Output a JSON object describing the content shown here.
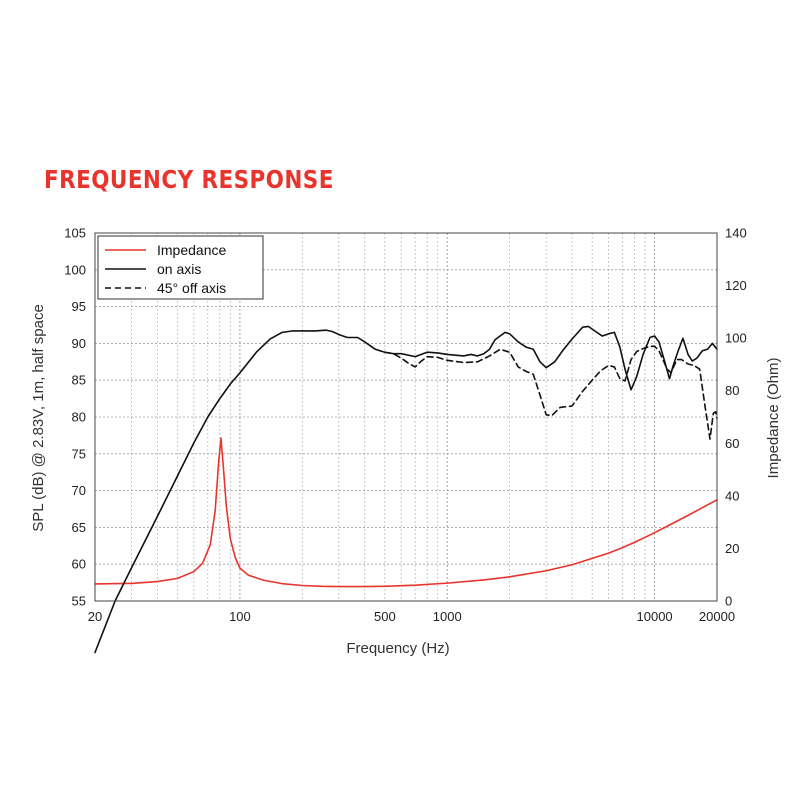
{
  "page_title": "FREQUENCY RESPONSE",
  "colors": {
    "title": "#e8342c",
    "impedance": "#e8342c",
    "on_axis": "#111111",
    "off_axis": "#111111",
    "grid": "#9a9a9a"
  },
  "chart_data": {
    "type": "line",
    "xlabel": "Frequency (Hz)",
    "ylabel": "SPL (dB) @ 2.83V, 1m, half space",
    "y2label": "Impedance (Ohm)",
    "x_scale": "log",
    "xlim": [
      20,
      20000
    ],
    "ylim": [
      55,
      105
    ],
    "y2lim": [
      0,
      140
    ],
    "grid": true,
    "legend_position": "top-left",
    "x_ticks": [
      20,
      100,
      500,
      1000,
      10000,
      20000
    ],
    "x_tick_labels": [
      "20",
      "100",
      "500",
      "1000",
      "10000",
      "20000"
    ],
    "y_ticks": [
      55,
      60,
      65,
      70,
      75,
      80,
      85,
      90,
      95,
      100,
      105
    ],
    "y_tick_labels": [
      "55",
      "60",
      "65",
      "70",
      "75",
      "80",
      "85",
      "90",
      "95",
      "100",
      "105"
    ],
    "y2_ticks": [
      0,
      20,
      40,
      60,
      80,
      100,
      120,
      140
    ],
    "y2_tick_labels": [
      "0",
      "20",
      "40",
      "60",
      "80",
      "100",
      "120",
      "140"
    ],
    "series": [
      {
        "name": "Impedance",
        "axis": "right",
        "style": "solid",
        "color": "#e8342c",
        "points": [
          [
            20,
            6.5
          ],
          [
            30,
            6.7
          ],
          [
            40,
            7.4
          ],
          [
            50,
            8.6
          ],
          [
            60,
            11.2
          ],
          [
            66,
            14.3
          ],
          [
            72,
            21.5
          ],
          [
            76,
            34.5
          ],
          [
            79,
            53
          ],
          [
            81,
            62
          ],
          [
            83,
            52
          ],
          [
            86,
            36
          ],
          [
            90,
            23.5
          ],
          [
            95,
            16.5
          ],
          [
            100,
            12.5
          ],
          [
            110,
            9.8
          ],
          [
            130,
            7.9
          ],
          [
            160,
            6.6
          ],
          [
            200,
            5.9
          ],
          [
            250,
            5.6
          ],
          [
            300,
            5.5
          ],
          [
            400,
            5.5
          ],
          [
            500,
            5.6
          ],
          [
            700,
            6
          ],
          [
            1000,
            6.8
          ],
          [
            1500,
            8
          ],
          [
            2000,
            9.2
          ],
          [
            3000,
            11.5
          ],
          [
            4000,
            13.8
          ],
          [
            5000,
            16.2
          ],
          [
            6000,
            18.2
          ],
          [
            7000,
            20.3
          ],
          [
            8000,
            22.3
          ],
          [
            10000,
            26
          ],
          [
            12000,
            29.2
          ],
          [
            15000,
            33.2
          ],
          [
            20000,
            38.5
          ]
        ]
      },
      {
        "name": "on axis",
        "axis": "left",
        "style": "solid",
        "color": "#111111",
        "points": [
          [
            20,
            48
          ],
          [
            25,
            55
          ],
          [
            30,
            59.5
          ],
          [
            40,
            66.5
          ],
          [
            50,
            72
          ],
          [
            60,
            76.5
          ],
          [
            70,
            80
          ],
          [
            80,
            82.5
          ],
          [
            90,
            84.5
          ],
          [
            100,
            86
          ],
          [
            120,
            88.8
          ],
          [
            140,
            90.6
          ],
          [
            160,
            91.5
          ],
          [
            180,
            91.7
          ],
          [
            200,
            91.7
          ],
          [
            230,
            91.7
          ],
          [
            260,
            91.8
          ],
          [
            280,
            91.6
          ],
          [
            300,
            91.2
          ],
          [
            330,
            90.8
          ],
          [
            370,
            90.8
          ],
          [
            400,
            90.2
          ],
          [
            450,
            89.2
          ],
          [
            500,
            88.8
          ],
          [
            550,
            88.6
          ],
          [
            600,
            88.6
          ],
          [
            700,
            88.2
          ],
          [
            800,
            88.8
          ],
          [
            900,
            88.7
          ],
          [
            1000,
            88.5
          ],
          [
            1200,
            88.3
          ],
          [
            1300,
            88.5
          ],
          [
            1400,
            88.3
          ],
          [
            1500,
            88.6
          ],
          [
            1600,
            89.2
          ],
          [
            1700,
            90.5
          ],
          [
            1900,
            91.5
          ],
          [
            2000,
            91.3
          ],
          [
            2200,
            90.2
          ],
          [
            2400,
            89.5
          ],
          [
            2600,
            89.2
          ],
          [
            2800,
            87.5
          ],
          [
            3000,
            86.7
          ],
          [
            3300,
            87.5
          ],
          [
            3600,
            89
          ],
          [
            4000,
            90.6
          ],
          [
            4500,
            92.2
          ],
          [
            4800,
            92.3
          ],
          [
            5200,
            91.6
          ],
          [
            5600,
            91
          ],
          [
            6000,
            91.3
          ],
          [
            6400,
            91.5
          ],
          [
            6800,
            89.5
          ],
          [
            7200,
            86.5
          ],
          [
            7700,
            83.7
          ],
          [
            8200,
            85.5
          ],
          [
            8800,
            88.5
          ],
          [
            9500,
            90.8
          ],
          [
            10000,
            91
          ],
          [
            10500,
            90.2
          ],
          [
            11200,
            87.5
          ],
          [
            11800,
            85.2
          ],
          [
            12300,
            87
          ],
          [
            13000,
            89
          ],
          [
            13700,
            90.7
          ],
          [
            14500,
            88.5
          ],
          [
            15200,
            87.6
          ],
          [
            16000,
            88
          ],
          [
            17000,
            89
          ],
          [
            18000,
            89.2
          ],
          [
            19000,
            90
          ],
          [
            20000,
            89.2
          ]
        ]
      },
      {
        "name": "45° off axis",
        "axis": "left",
        "style": "dashed",
        "color": "#111111",
        "points": [
          [
            500,
            88.8
          ],
          [
            550,
            88.6
          ],
          [
            600,
            88
          ],
          [
            650,
            87.3
          ],
          [
            700,
            86.8
          ],
          [
            750,
            87.6
          ],
          [
            800,
            88.2
          ],
          [
            900,
            88.1
          ],
          [
            1000,
            87.7
          ],
          [
            1200,
            87.4
          ],
          [
            1400,
            87.5
          ],
          [
            1600,
            88.3
          ],
          [
            1800,
            89.2
          ],
          [
            2000,
            88.8
          ],
          [
            2200,
            86.8
          ],
          [
            2400,
            86.2
          ],
          [
            2600,
            85.8
          ],
          [
            2800,
            83
          ],
          [
            3000,
            80.3
          ],
          [
            3200,
            80.2
          ],
          [
            3500,
            81.3
          ],
          [
            4000,
            81.5
          ],
          [
            4500,
            83.5
          ],
          [
            5000,
            85
          ],
          [
            5500,
            86.3
          ],
          [
            6000,
            87
          ],
          [
            6400,
            86.8
          ],
          [
            6800,
            85.2
          ],
          [
            7200,
            84.9
          ],
          [
            7700,
            87.8
          ],
          [
            8200,
            88.9
          ],
          [
            8800,
            89.3
          ],
          [
            9500,
            89.6
          ],
          [
            10000,
            89.6
          ],
          [
            10500,
            89
          ],
          [
            11500,
            86.5
          ],
          [
            12000,
            86
          ],
          [
            12800,
            87.8
          ],
          [
            13500,
            87.8
          ],
          [
            14500,
            87.2
          ],
          [
            15500,
            87
          ],
          [
            16500,
            86.5
          ],
          [
            17500,
            81.5
          ],
          [
            18500,
            77
          ],
          [
            19200,
            80.5
          ],
          [
            19700,
            80.7
          ],
          [
            20000,
            79.8
          ]
        ]
      }
    ]
  }
}
